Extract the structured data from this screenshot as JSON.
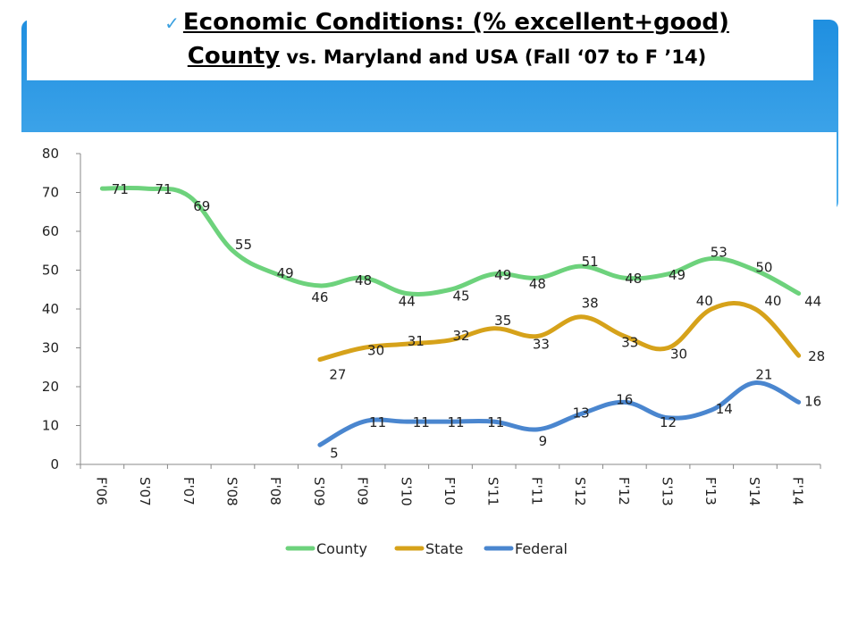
{
  "title": {
    "check": "✓",
    "line1": "Economic Conditions: (% excellent+good)",
    "line2_big": "County",
    "line2_rest": " vs. Maryland and USA (Fall ‘07 to F ’14)"
  },
  "colors": {
    "banner": "#2a95e2",
    "county": "#6dd27c",
    "state": "#d6a21a",
    "federal": "#4a86cf"
  },
  "chart_data": {
    "type": "line",
    "categories": [
      "F'06",
      "S'07",
      "F'07",
      "S'08",
      "F'08",
      "S'09",
      "F'09",
      "S'10",
      "F'10",
      "S'11",
      "F'11",
      "S'12",
      "F'12",
      "S'13",
      "F'13",
      "S'14",
      "F'14"
    ],
    "ylim": [
      0,
      80
    ],
    "yticks": [
      "0",
      "10",
      "20",
      "30",
      "40",
      "50",
      "60",
      "70",
      "80"
    ],
    "legend": "bottom",
    "series": [
      {
        "name": "County",
        "values": [
          71,
          71,
          69,
          55,
          49,
          46,
          48,
          44,
          45,
          49,
          48,
          51,
          48,
          49,
          53,
          50,
          44
        ]
      },
      {
        "name": "State",
        "values": [
          null,
          null,
          null,
          null,
          null,
          27,
          30,
          31,
          32,
          35,
          33,
          38,
          33,
          30,
          40,
          40,
          28
        ]
      },
      {
        "name": "Federal",
        "values": [
          null,
          null,
          null,
          null,
          null,
          5,
          11,
          11,
          11,
          11,
          9,
          13,
          16,
          12,
          14,
          21,
          16
        ]
      }
    ]
  }
}
